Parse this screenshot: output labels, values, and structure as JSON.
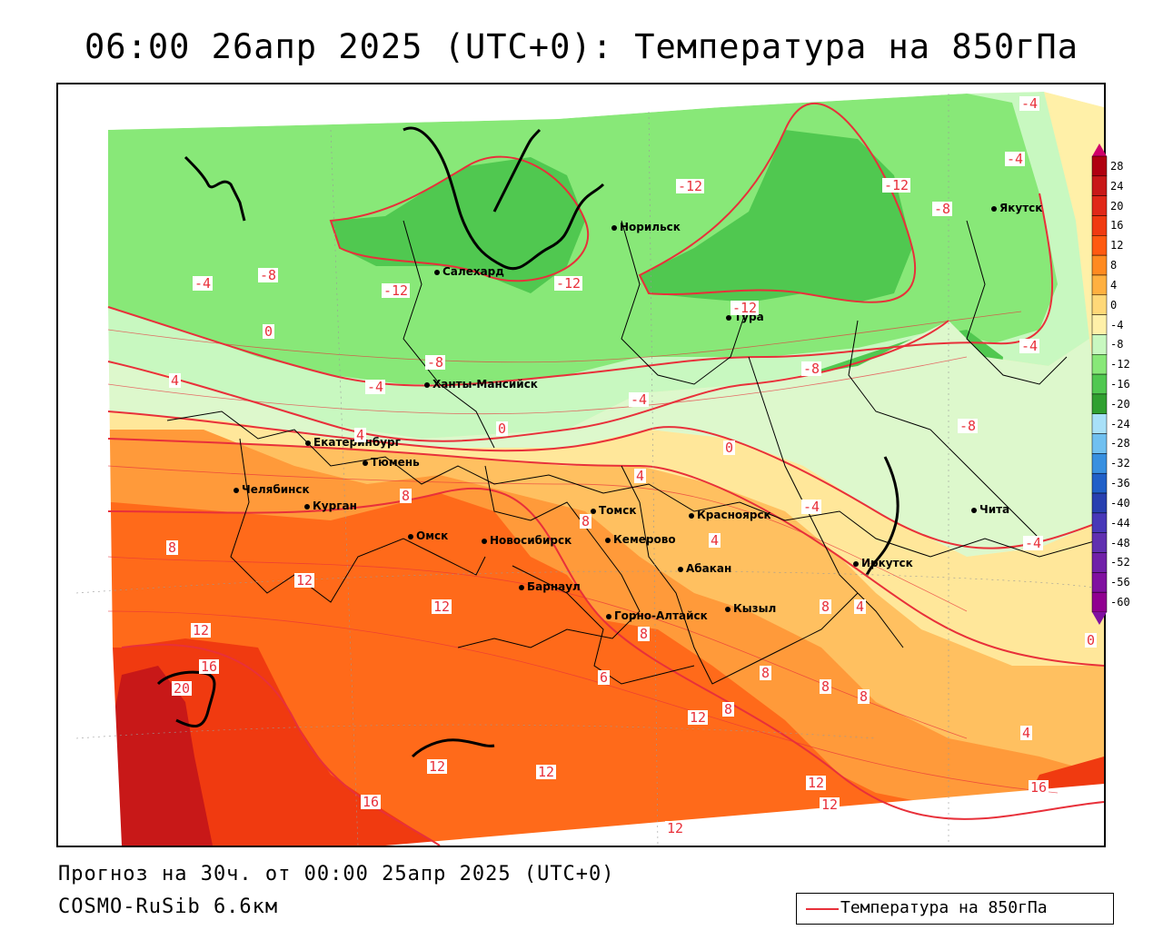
{
  "title": "06:00 26апр 2025 (UTC+0): Температура на 850гПа",
  "footer": {
    "forecast": "Прогноз на 30ч. от 00:00 25апр 2025 (UTC+0)",
    "model": "COSMO-RuSib 6.6км"
  },
  "legend": {
    "label": "Температура на 850гПа",
    "line_color": "#e8303a"
  },
  "colorbar": {
    "ticks": [
      "28",
      "24",
      "20",
      "16",
      "12",
      "8",
      "4",
      "0",
      "-4",
      "-8",
      "-12",
      "-16",
      "-20",
      "-24",
      "-28",
      "-32",
      "-36",
      "-40",
      "-44",
      "-48",
      "-52",
      "-56",
      "-60"
    ],
    "colors": [
      "#b00010",
      "#c81818",
      "#e02818",
      "#f03a10",
      "#ff5a10",
      "#ff8a20",
      "#ffb040",
      "#ffd878",
      "#fff0a8",
      "#c8f8c0",
      "#88e878",
      "#50c850",
      "#30a030",
      "#a8e0f8",
      "#70c0f0",
      "#3890e0",
      "#2060c8",
      "#2840b0",
      "#4838b8",
      "#6030b0",
      "#7020a8",
      "#8010a0",
      "#900090"
    ]
  },
  "cities": [
    {
      "name": "Салехард"
    },
    {
      "name": "Норильск"
    },
    {
      "name": "Якутск"
    },
    {
      "name": "Тура"
    },
    {
      "name": "Ханты-Мансийск"
    },
    {
      "name": "Екатеринбург"
    },
    {
      "name": "Тюмень"
    },
    {
      "name": "Челябинск"
    },
    {
      "name": "Курган"
    },
    {
      "name": "Омск"
    },
    {
      "name": "Новосибирск"
    },
    {
      "name": "Томск"
    },
    {
      "name": "Кемерово"
    },
    {
      "name": "Барнаул"
    },
    {
      "name": "Красноярск"
    },
    {
      "name": "Абакан"
    },
    {
      "name": "Горно-Алтайск"
    },
    {
      "name": "Кызыл"
    },
    {
      "name": "Иркутск"
    },
    {
      "name": "Чита"
    }
  ],
  "contour_labels": [
    {
      "value": "-4"
    },
    {
      "value": "-4"
    },
    {
      "value": "-12"
    },
    {
      "value": "-12"
    },
    {
      "value": "-8"
    },
    {
      "value": "-4"
    },
    {
      "value": "-8"
    },
    {
      "value": "-12"
    },
    {
      "value": "-12"
    },
    {
      "value": "-12"
    },
    {
      "value": "-4"
    },
    {
      "value": "0"
    },
    {
      "value": "-8"
    },
    {
      "value": "-4"
    },
    {
      "value": "-4"
    },
    {
      "value": "-8"
    },
    {
      "value": "-8"
    },
    {
      "value": "4"
    },
    {
      "value": "0"
    },
    {
      "value": "0"
    },
    {
      "value": "4"
    },
    {
      "value": "4"
    },
    {
      "value": "8"
    },
    {
      "value": "8"
    },
    {
      "value": "-4"
    },
    {
      "value": "-4"
    },
    {
      "value": "8"
    },
    {
      "value": "4"
    },
    {
      "value": "12"
    },
    {
      "value": "12"
    },
    {
      "value": "12"
    },
    {
      "value": "8"
    },
    {
      "value": "16"
    },
    {
      "value": "20"
    },
    {
      "value": "6"
    },
    {
      "value": "8"
    },
    {
      "value": "8"
    },
    {
      "value": "8"
    },
    {
      "value": "12"
    },
    {
      "value": "8"
    },
    {
      "value": "8"
    },
    {
      "value": "4"
    },
    {
      "value": "12"
    },
    {
      "value": "12"
    },
    {
      "value": "16"
    },
    {
      "value": "12"
    },
    {
      "value": "12"
    },
    {
      "value": "16"
    },
    {
      "value": "12"
    },
    {
      "value": "0"
    },
    {
      "value": "4"
    }
  ]
}
